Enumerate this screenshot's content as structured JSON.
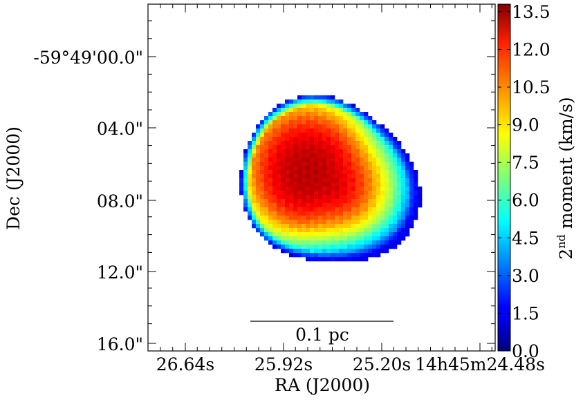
{
  "chart_data": {
    "type": "heatmap",
    "title": "",
    "xlabel": "RA (J2000)",
    "ylabel": "Dec (J2000)",
    "x_ticks": [
      "26.64s",
      "25.92s",
      "25.20s",
      "14h45m24.48s"
    ],
    "y_ticks": [
      "-59°49'00.0\"",
      "04.0\"",
      "08.0\"",
      "12.0\"",
      "16.0\""
    ],
    "colorbar": {
      "label_prefix": "2",
      "label_superscript": "nd",
      "label_suffix": " moment (km/s)",
      "range": [
        0,
        13.8
      ],
      "ticks": [
        "0.0",
        "1.5",
        "3.0",
        "4.5",
        "6.0",
        "7.5",
        "9.0",
        "10.5",
        "12.0",
        "13.5"
      ],
      "tick_values": [
        0,
        1.5,
        3.0,
        4.5,
        6.0,
        7.5,
        9.0,
        10.5,
        12.0,
        13.5
      ],
      "colormap": "jet"
    },
    "blob": {
      "peak_value": 13.0,
      "edge_value": 1.5
    },
    "scale_bar": {
      "label": "0.1 pc"
    },
    "grid": false
  }
}
